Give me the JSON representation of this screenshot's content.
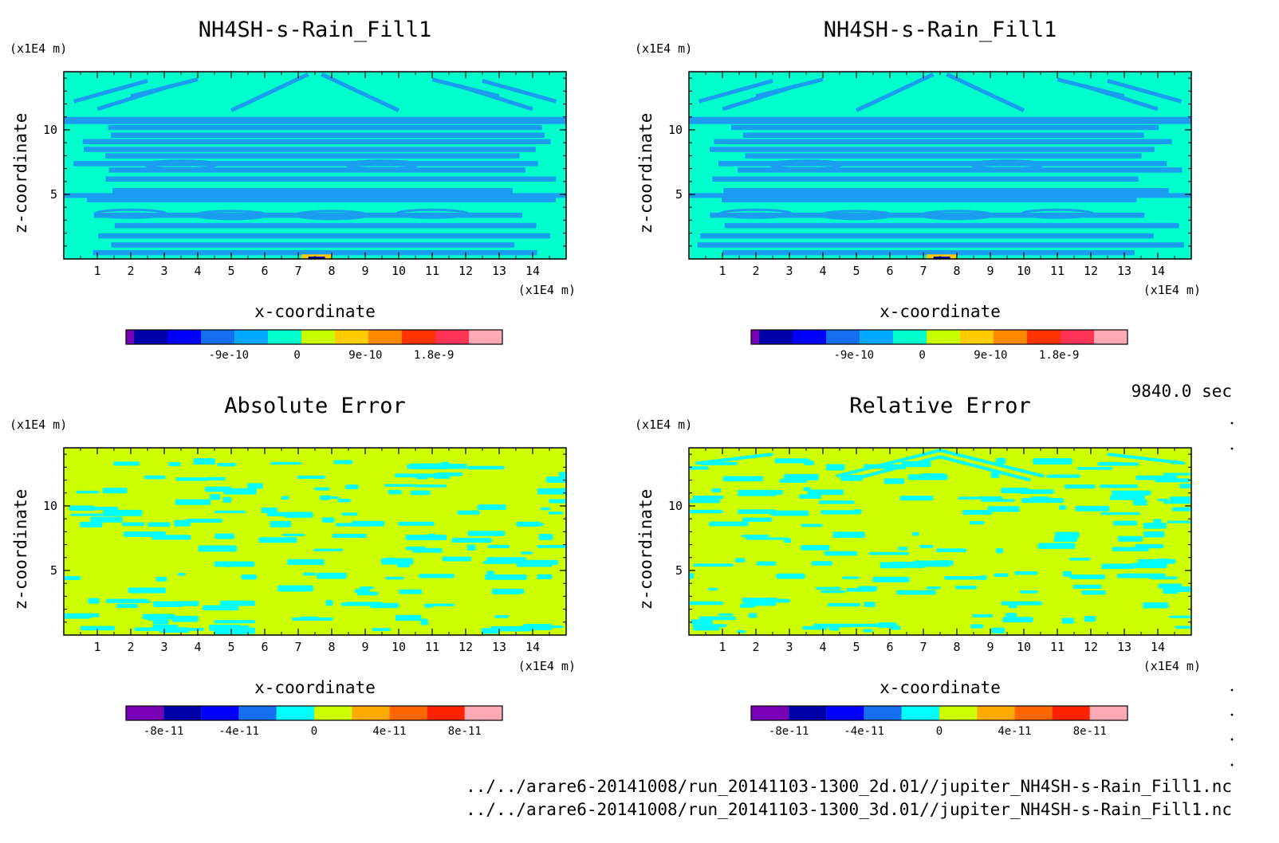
{
  "chart_data": [
    {
      "type": "heatmap",
      "title": "NH4SH-s-Rain_Fill1",
      "xlabel": "x-coordinate",
      "ylabel": "z-coordinate",
      "x_unit": "(x1E4 m)",
      "y_unit": "(x1E4 m)",
      "xlim": [
        0,
        15
      ],
      "ylim": [
        0,
        14.5
      ],
      "x_ticks": [
        "1",
        "2",
        "3",
        "4",
        "5",
        "6",
        "7",
        "8",
        "9",
        "10",
        "11",
        "12",
        "13",
        "14"
      ],
      "y_ticks": [
        "5",
        "10"
      ],
      "background_color": "#00ffcc",
      "contour_color": "#1a9cf0",
      "colorbar": {
        "colors": [
          "#7a00b8",
          "#0000a8",
          "#0000ff",
          "#1470f0",
          "#00a8ff",
          "#00ffcc",
          "#c8ff00",
          "#ffcc00",
          "#ff8800",
          "#ff3300",
          "#ff3355",
          "#ffaab4"
        ],
        "tick_labels": [
          "-9e-10",
          "0",
          "9e-10",
          "1.8e-9"
        ],
        "tick_values": [
          -9e-10,
          0,
          9e-10,
          1.8e-09
        ],
        "range": [
          -2.25e-09,
          2.7e-09
        ]
      }
    },
    {
      "type": "heatmap",
      "title": "NH4SH-s-Rain_Fill1",
      "xlabel": "x-coordinate",
      "ylabel": "z-coordinate",
      "x_unit": "(x1E4 m)",
      "y_unit": "(x1E4 m)",
      "xlim": [
        0,
        15
      ],
      "ylim": [
        0,
        14.5
      ],
      "x_ticks": [
        "1",
        "2",
        "3",
        "4",
        "5",
        "6",
        "7",
        "8",
        "9",
        "10",
        "11",
        "12",
        "13",
        "14"
      ],
      "y_ticks": [
        "5",
        "10"
      ],
      "background_color": "#00ffcc",
      "contour_color": "#1a9cf0",
      "colorbar": {
        "colors": [
          "#7a00b8",
          "#0000a8",
          "#0000ff",
          "#1470f0",
          "#00a8ff",
          "#00ffcc",
          "#c8ff00",
          "#ffcc00",
          "#ff8800",
          "#ff3300",
          "#ff3355",
          "#ffaab4"
        ],
        "tick_labels": [
          "-9e-10",
          "0",
          "9e-10",
          "1.8e-9"
        ],
        "tick_values": [
          -9e-10,
          0,
          9e-10,
          1.8e-09
        ],
        "range": [
          -2.25e-09,
          2.7e-09
        ]
      }
    },
    {
      "type": "heatmap",
      "title": "Absolute Error",
      "xlabel": "x-coordinate",
      "ylabel": "z-coordinate",
      "x_unit": "(x1E4 m)",
      "y_unit": "(x1E4 m)",
      "xlim": [
        0,
        15
      ],
      "ylim": [
        0,
        14.5
      ],
      "x_ticks": [
        "1",
        "2",
        "3",
        "4",
        "5",
        "6",
        "7",
        "8",
        "9",
        "10",
        "11",
        "12",
        "13",
        "14"
      ],
      "y_ticks": [
        "5",
        "10"
      ],
      "background_color": "#ccff00",
      "contour_color": "#00ffff",
      "colorbar": {
        "colors": [
          "#7a00b8",
          "#0000a8",
          "#0000ff",
          "#1470f0",
          "#00ffff",
          "#ccff00",
          "#ffaa00",
          "#ff6600",
          "#ff2200",
          "#ffaab4"
        ],
        "tick_labels": [
          "-8e-11",
          "-4e-11",
          "0",
          "4e-11",
          "8e-11"
        ],
        "tick_values": [
          -8e-11,
          -4e-11,
          0,
          4e-11,
          8e-11
        ],
        "range": [
          -1e-10,
          1e-10
        ]
      }
    },
    {
      "type": "heatmap",
      "title": "Relative Error",
      "xlabel": "x-coordinate",
      "ylabel": "z-coordinate",
      "x_unit": "(x1E4 m)",
      "y_unit": "(x1E4 m)",
      "xlim": [
        0,
        15
      ],
      "ylim": [
        0,
        14.5
      ],
      "x_ticks": [
        "1",
        "2",
        "3",
        "4",
        "5",
        "6",
        "7",
        "8",
        "9",
        "10",
        "11",
        "12",
        "13",
        "14"
      ],
      "y_ticks": [
        "5",
        "10"
      ],
      "background_color": "#ccff00",
      "contour_color": "#00ffff",
      "colorbar": {
        "colors": [
          "#7a00b8",
          "#0000a8",
          "#0000ff",
          "#1470f0",
          "#00ffff",
          "#ccff00",
          "#ffaa00",
          "#ff6600",
          "#ff2200",
          "#ffaab4"
        ],
        "tick_labels": [
          "-8e-11",
          "-4e-11",
          "0",
          "4e-11",
          "8e-11"
        ],
        "tick_values": [
          -8e-11,
          -4e-11,
          0,
          4e-11,
          8e-11
        ],
        "range": [
          -1e-10,
          1e-10
        ]
      }
    }
  ],
  "time_label": "9840.0 sec",
  "footer": {
    "line1": "../../arare6-20141008/run_20141103-1300_2d.01//jupiter_NH4SH-s-Rain_Fill1.nc",
    "line2": "../../arare6-20141008/run_20141103-1300_3d.01//jupiter_NH4SH-s-Rain_Fill1.nc"
  }
}
